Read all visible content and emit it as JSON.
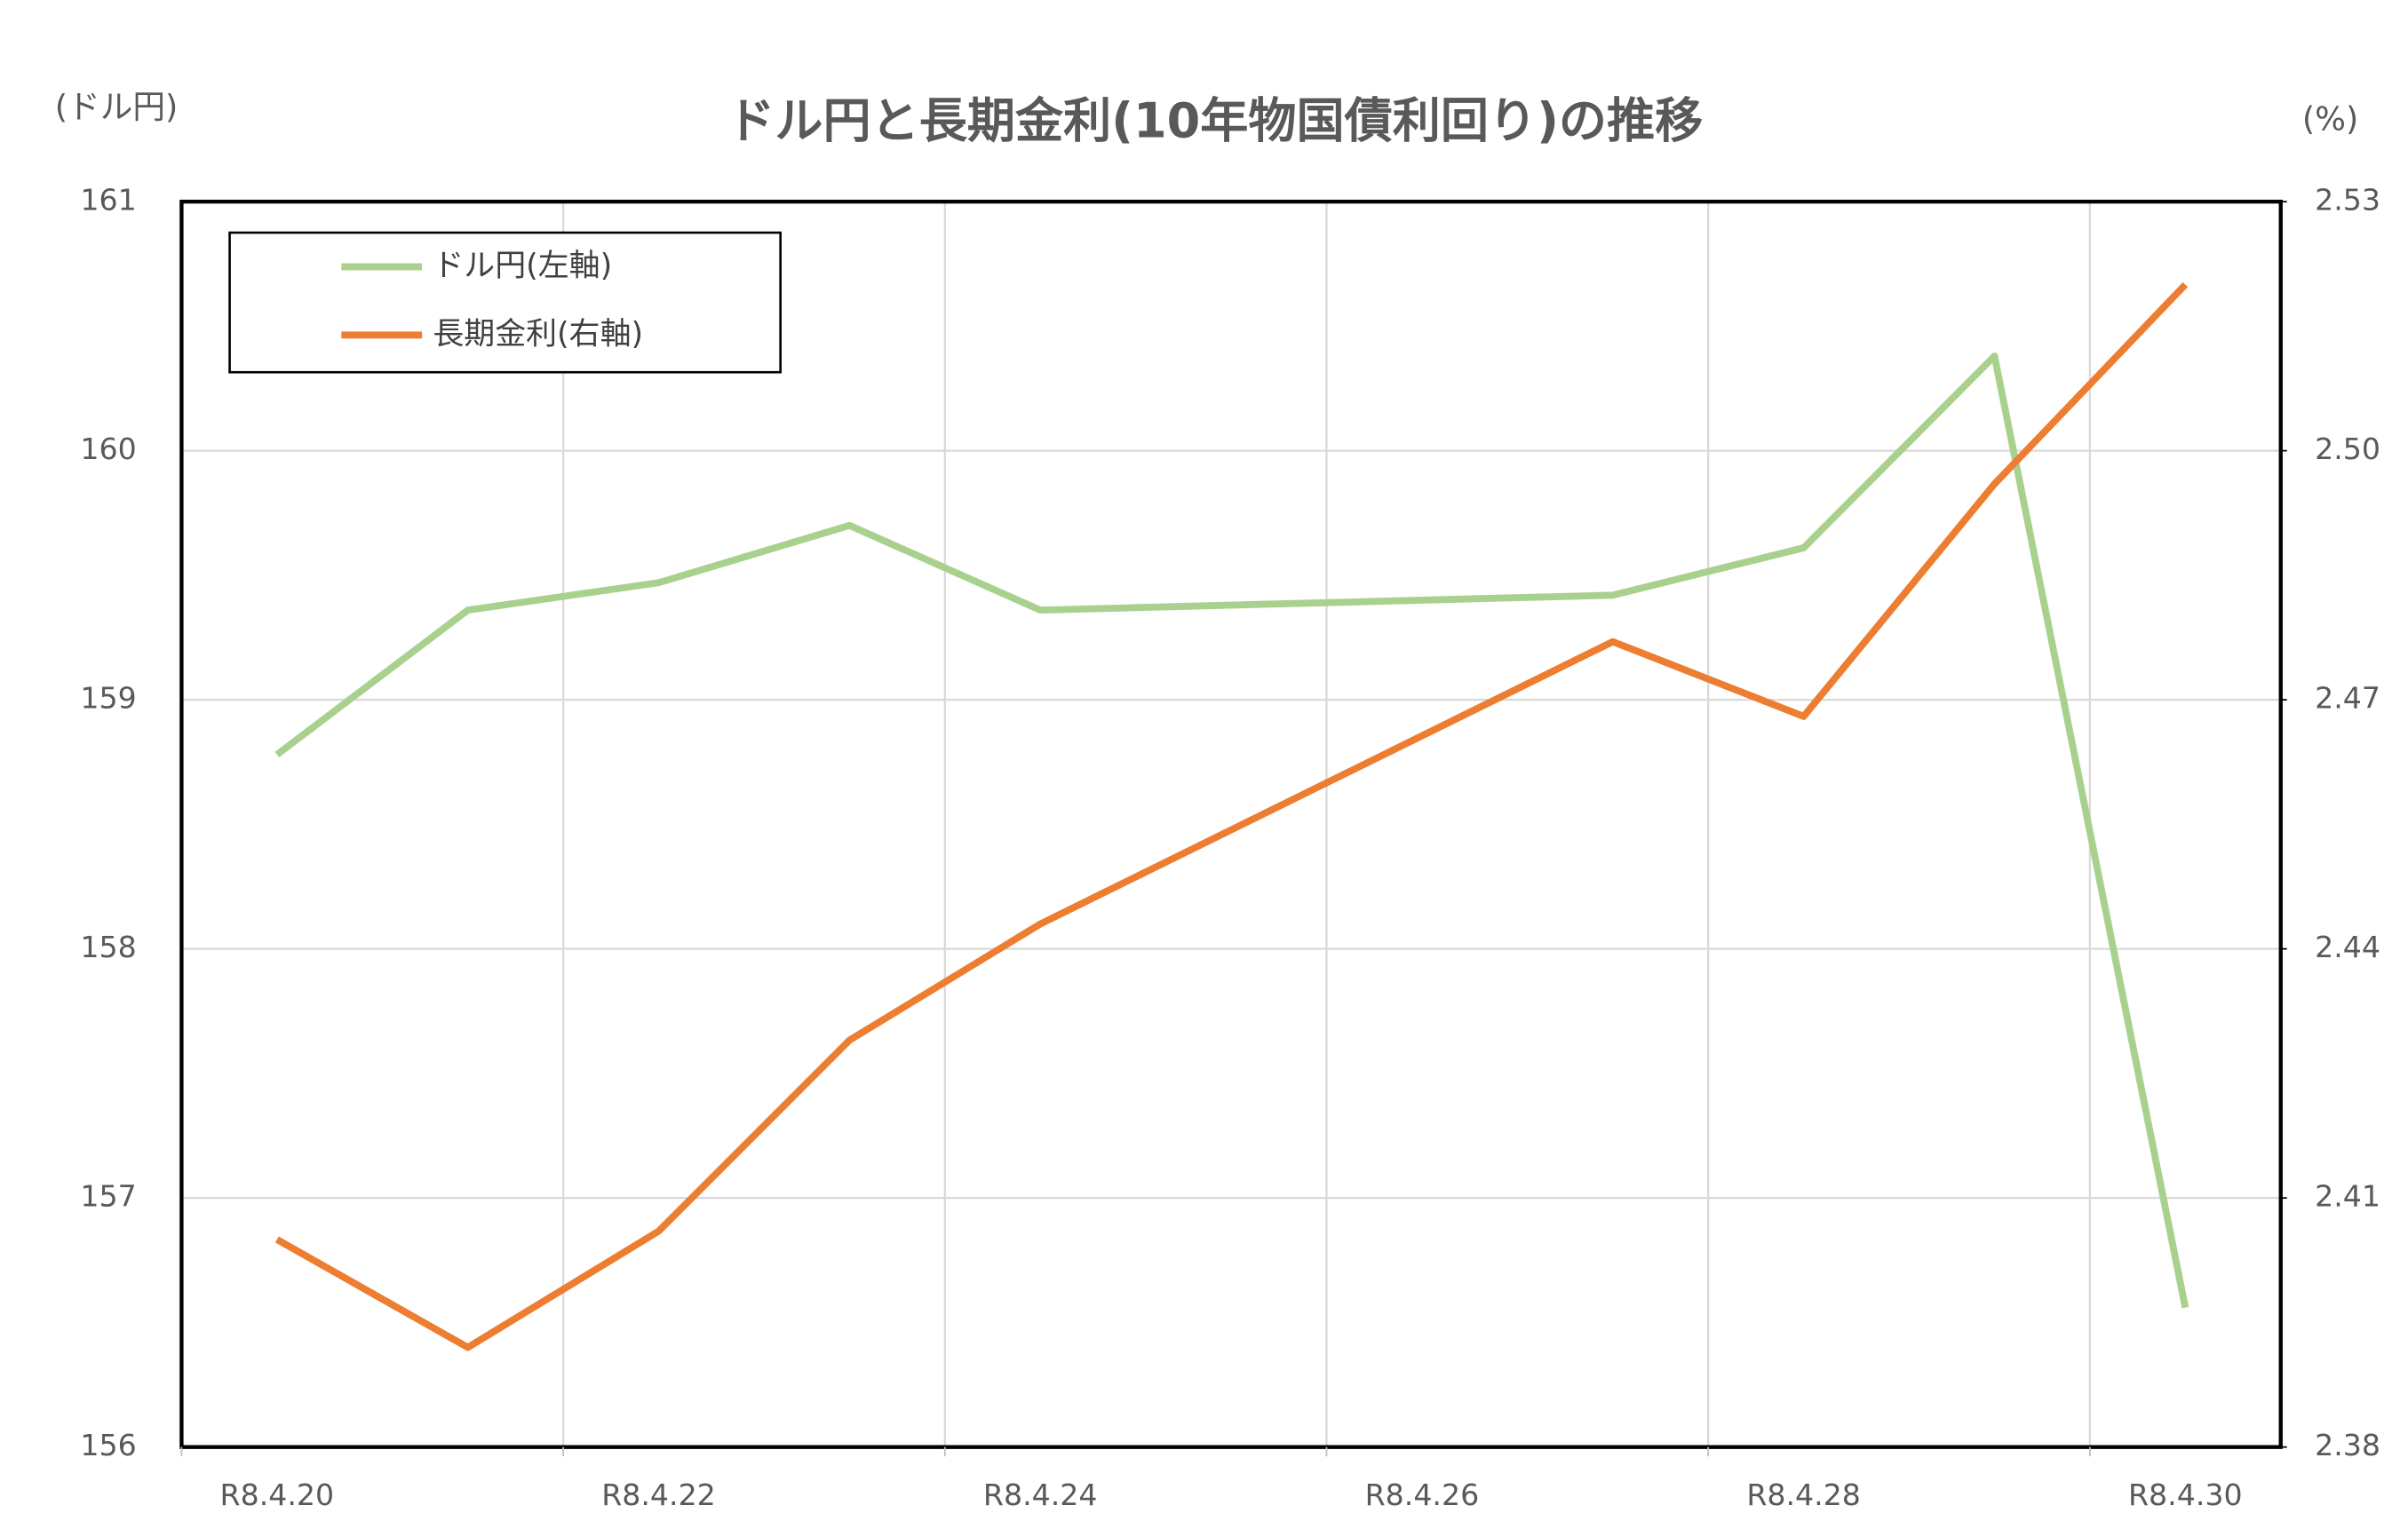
{
  "chart_data": {
    "type": "line",
    "title": "ドル円と長期金利(10年物国債利回り)の推移",
    "y_label": "(ドル円)",
    "y2_label": "(%)",
    "x": [
      20,
      21,
      22,
      23,
      24,
      27,
      28,
      29,
      30
    ],
    "xlim": [
      19.5,
      30.5
    ],
    "xticks": [
      {
        "value": 20,
        "label": "R8.4.20"
      },
      {
        "value": 22,
        "label": "R8.4.22"
      },
      {
        "value": 24,
        "label": "R8.4.24"
      },
      {
        "value": 26,
        "label": "R8.4.26"
      },
      {
        "value": 28,
        "label": "R8.4.28"
      },
      {
        "value": 30,
        "label": "R8.4.30"
      }
    ],
    "ylim": [
      156,
      161
    ],
    "yticks": [
      156,
      157,
      158,
      159,
      160,
      161
    ],
    "y2lim": [
      2.38,
      2.53
    ],
    "y2ticks": [
      2.38,
      2.41,
      2.44,
      2.47,
      {
        "value": 2.5,
        "label": "2.50"
      },
      2.53
    ],
    "grid": true,
    "legend": "upper left",
    "series": [
      {
        "name": "ドル円(左軸)",
        "color": "#a9d18e",
        "values": [
          158.78,
          159.36,
          159.47,
          159.7,
          159.36,
          159.42,
          159.61,
          160.38,
          156.56
        ]
      },
      {
        "name": "長期金利(右軸)",
        "color": "#ed7d31",
        "axis": "y2",
        "values": [
          2.405,
          2.392,
          2.406,
          2.429,
          2.443,
          2.477,
          2.468,
          2.496,
          2.52
        ]
      }
    ]
  }
}
